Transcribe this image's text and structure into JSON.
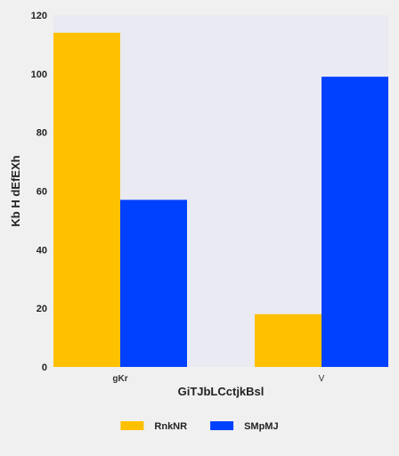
{
  "chart_data": {
    "type": "bar",
    "categories": [
      "gKr",
      "V"
    ],
    "series": [
      {
        "name": "RnkNR",
        "values": [
          114,
          18
        ],
        "color": "#ffc000"
      },
      {
        "name": "SMpMJ",
        "values": [
          57,
          99
        ],
        "color": "#0041ff"
      }
    ],
    "xlabel": "GiTJbLCctjkBsl",
    "ylabel": "Kb H dEfEXh",
    "ylim": [
      0,
      120
    ],
    "yticks": [
      0,
      20,
      40,
      60,
      80,
      100,
      120
    ],
    "grid": false,
    "legend_position": "bottom",
    "plot_background": "#eaeaf2",
    "page_background": "#f0f0f0"
  }
}
